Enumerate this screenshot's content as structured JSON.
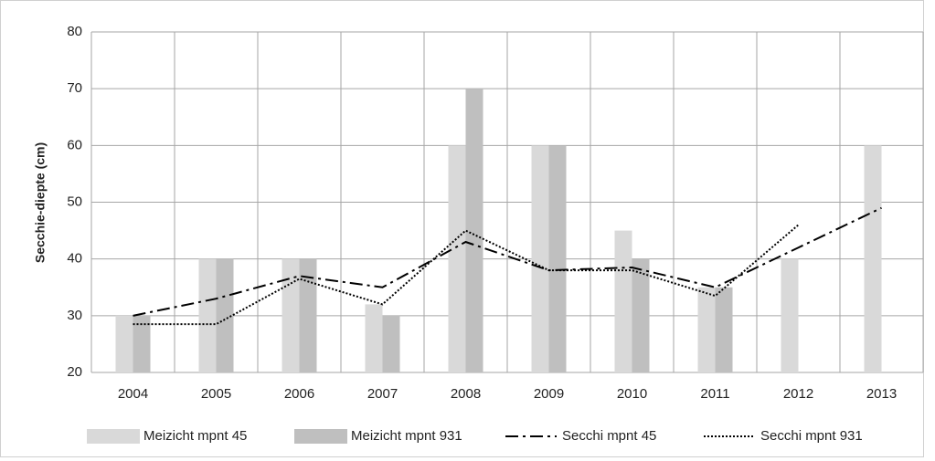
{
  "chart_data": {
    "type": "bar",
    "y_label": "Secchie-diepte (cm)",
    "categories": [
      "2004",
      "2005",
      "2006",
      "2007",
      "2008",
      "2009",
      "2010",
      "2011",
      "2012",
      "2013"
    ],
    "series": [
      {
        "name": "Meizicht mpnt 45",
        "type": "bar",
        "color": "#d9d9d9",
        "values": [
          30,
          40,
          40,
          32,
          60,
          60,
          45,
          35,
          40,
          60
        ]
      },
      {
        "name": "Meizicht mpnt 931",
        "type": "bar",
        "color": "#bfbfbf",
        "values": [
          30,
          40,
          40,
          30,
          70,
          60,
          40,
          35,
          null,
          null
        ]
      },
      {
        "name": "Secchi mpnt 45",
        "type": "line",
        "color": "#000000",
        "dash": "14,5,3,5",
        "values": [
          30,
          33,
          37,
          35,
          43,
          38,
          38.5,
          35,
          42,
          49
        ]
      },
      {
        "name": "Secchi mpnt 931",
        "type": "line",
        "color": "#000000",
        "dash": "2,2",
        "values": [
          28.5,
          28.5,
          36.5,
          32,
          45,
          38,
          38,
          33.5,
          46,
          null
        ]
      }
    ],
    "ylim": [
      20,
      80
    ],
    "yticks": [
      20,
      30,
      40,
      50,
      60,
      70,
      80
    ],
    "grid": true,
    "legend": "bottom"
  }
}
